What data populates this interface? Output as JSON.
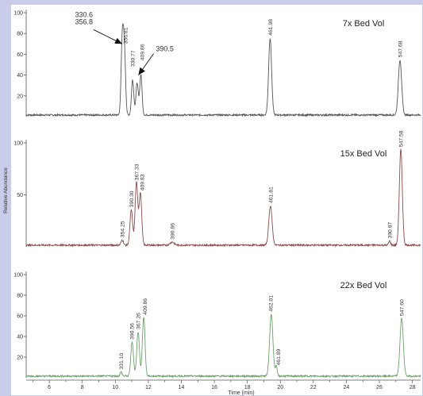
{
  "chart_data": {
    "type": "line",
    "xlabel": "Time (min)",
    "ylabel": "Relative Abundance",
    "xlim": [
      4.6,
      28.5
    ],
    "x_ticks": [
      6,
      8,
      10,
      12,
      14,
      16,
      18,
      20,
      22,
      24,
      26,
      28
    ],
    "colors": {
      "background": "#c9cdea",
      "panel": "#ffffff",
      "axis": "#555555"
    },
    "panels": [
      {
        "label": "7x Bed Vol",
        "color": "#555555",
        "ylim": [
          0,
          100
        ],
        "y_ticks": [
          20,
          40,
          60,
          80,
          100
        ],
        "peaks": [
          {
            "x": 10.42,
            "y": 71,
            "w": 0.07
          },
          {
            "x": 10.55,
            "y": 62,
            "w": 0.07
          },
          {
            "x": 11.05,
            "y": 34,
            "w": 0.07
          },
          {
            "x": 11.32,
            "y": 31,
            "w": 0.07
          },
          {
            "x": 11.55,
            "y": 39,
            "w": 0.07
          },
          {
            "x": 19.38,
            "y": 74,
            "w": 0.09
          },
          {
            "x": 27.25,
            "y": 53,
            "w": 0.1
          }
        ],
        "peak_labels": [
          {
            "text": "356.81",
            "x": 10.62,
            "y": 70
          },
          {
            "text": "330.77",
            "x": 11.05,
            "y": 48
          },
          {
            "text": "409.86",
            "x": 11.62,
            "y": 54
          },
          {
            "text": "461.98",
            "x": 19.38,
            "y": 78
          },
          {
            "text": "547.68",
            "x": 27.25,
            "y": 57
          }
        ],
        "callouts": [
          {
            "lines": [
              "330.6",
              "356.8"
            ],
            "from": [
              8.1,
              86
            ],
            "to": [
              10.42,
              70
            ]
          },
          {
            "lines": [
              "390.5"
            ],
            "from": [
              13.0,
              63
            ],
            "to": [
              11.4,
              40
            ]
          }
        ]
      },
      {
        "label": "15x  Bed Vol",
        "color": "#8e4a4a",
        "ylim": [
          0,
          100
        ],
        "y_ticks": [
          50,
          100
        ],
        "peaks": [
          {
            "x": 10.42,
            "y": 5,
            "w": 0.07
          },
          {
            "x": 10.97,
            "y": 34,
            "w": 0.08
          },
          {
            "x": 11.28,
            "y": 60,
            "w": 0.08
          },
          {
            "x": 11.52,
            "y": 50,
            "w": 0.08
          },
          {
            "x": 13.45,
            "y": 3,
            "w": 0.12
          },
          {
            "x": 19.4,
            "y": 38,
            "w": 0.1
          },
          {
            "x": 26.62,
            "y": 4,
            "w": 0.06
          },
          {
            "x": 27.3,
            "y": 92,
            "w": 0.09
          }
        ],
        "peak_labels": [
          {
            "text": "354.25",
            "x": 10.42,
            "y": 9
          },
          {
            "text": "390.30",
            "x": 10.97,
            "y": 38
          },
          {
            "text": "367.33",
            "x": 11.28,
            "y": 64
          },
          {
            "text": "409.83",
            "x": 11.62,
            "y": 54
          },
          {
            "text": "390.86",
            "x": 13.45,
            "y": 7
          },
          {
            "text": "461.81",
            "x": 19.4,
            "y": 42
          },
          {
            "text": "390.87",
            "x": 26.62,
            "y": 8
          },
          {
            "text": "547.58",
            "x": 27.3,
            "y": 96
          }
        ]
      },
      {
        "label": "22x  Bed Vol",
        "color": "#6aa36a",
        "ylim": [
          0,
          100
        ],
        "y_ticks": [
          20,
          40,
          60,
          80,
          100
        ],
        "peaks": [
          {
            "x": 10.35,
            "y": 4,
            "w": 0.06
          },
          {
            "x": 11.02,
            "y": 33,
            "w": 0.08
          },
          {
            "x": 11.38,
            "y": 43,
            "w": 0.08
          },
          {
            "x": 11.72,
            "y": 57,
            "w": 0.08
          },
          {
            "x": 19.45,
            "y": 60,
            "w": 0.1
          },
          {
            "x": 19.75,
            "y": 9,
            "w": 0.06
          },
          {
            "x": 27.35,
            "y": 56,
            "w": 0.1
          }
        ],
        "peak_labels": [
          {
            "text": "331.10",
            "x": 10.35,
            "y": 8
          },
          {
            "text": "390.56",
            "x": 11.0,
            "y": 37
          },
          {
            "text": "367.26",
            "x": 11.38,
            "y": 47
          },
          {
            "text": "409.86",
            "x": 11.78,
            "y": 61
          },
          {
            "text": "462.01",
            "x": 19.42,
            "y": 64
          },
          {
            "text": "461.89",
            "x": 19.88,
            "y": 12
          },
          {
            "text": "547.60",
            "x": 27.35,
            "y": 60
          }
        ]
      }
    ]
  }
}
